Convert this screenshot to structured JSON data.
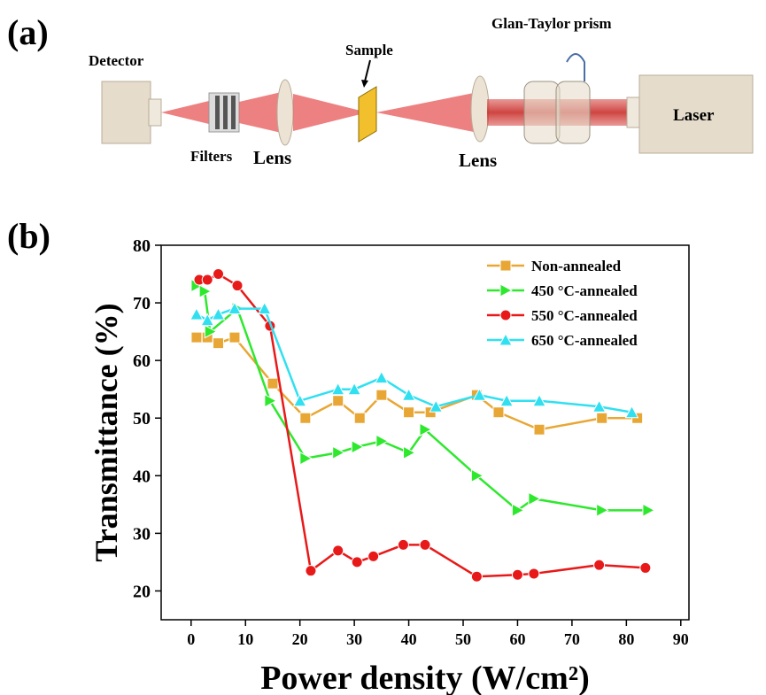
{
  "panels": {
    "a": "(a)",
    "b": "(b)"
  },
  "diagram": {
    "detector": "Detector",
    "filters": "Filters",
    "lens_left": "Lens",
    "sample": "Sample",
    "lens_right": "Lens",
    "prism": "Glan-Taylor prism",
    "laser": "Laser"
  },
  "chart_data": {
    "type": "line",
    "x_label": "Power density (W/cm²)",
    "y_label": "Transmittance (%)",
    "xlim": [
      -5.5,
      91.5
    ],
    "ylim": [
      15,
      80
    ],
    "xticks": [
      0,
      10,
      20,
      30,
      40,
      50,
      60,
      70,
      80,
      90
    ],
    "yticks": [
      20,
      30,
      40,
      50,
      60,
      70,
      80
    ],
    "legend": "upper-right",
    "series": [
      {
        "name": "Non-annealed",
        "color": "#e8a735",
        "marker": "square",
        "x": [
          1,
          3,
          5,
          8,
          15,
          21,
          27,
          31,
          35,
          40,
          44,
          52.5,
          56.5,
          64,
          75.5,
          82
        ],
        "values": [
          64,
          64,
          63,
          64,
          56,
          50,
          53,
          50,
          54,
          51,
          51,
          54,
          51,
          48,
          50,
          50
        ]
      },
      {
        "name": "450 °C-annealed",
        "color": "#2ee82e",
        "marker": "diamond",
        "x": [
          1,
          2.5,
          3.5,
          8.5,
          14.5,
          21,
          27,
          30.5,
          35,
          40,
          43,
          52.5,
          60,
          63,
          75.5,
          84
        ],
        "values": [
          73,
          72,
          65,
          69,
          53,
          43,
          44,
          45,
          46,
          44,
          48,
          40,
          34,
          36,
          34,
          34
        ]
      },
      {
        "name": "550 °C-annealed",
        "color": "#e81919",
        "marker": "circle",
        "x": [
          1.5,
          3,
          5,
          8.5,
          14.5,
          22,
          27,
          30.5,
          33.5,
          39,
          43,
          52.5,
          60,
          63,
          75,
          83.5
        ],
        "values": [
          74,
          74,
          75,
          73,
          66,
          23.5,
          27,
          25,
          26,
          28,
          28,
          22.5,
          22.8,
          23,
          24.5,
          24
        ]
      },
      {
        "name": "650 °C-annealed",
        "color": "#30e0f0",
        "marker": "triangle",
        "x": [
          1,
          3,
          5,
          8,
          13.5,
          20,
          27,
          30,
          35,
          40,
          45,
          53,
          58,
          64,
          75,
          81
        ],
        "values": [
          68,
          67,
          68,
          69,
          69,
          53,
          55,
          55,
          57,
          54,
          52,
          54,
          53,
          53,
          52,
          51
        ]
      }
    ]
  }
}
